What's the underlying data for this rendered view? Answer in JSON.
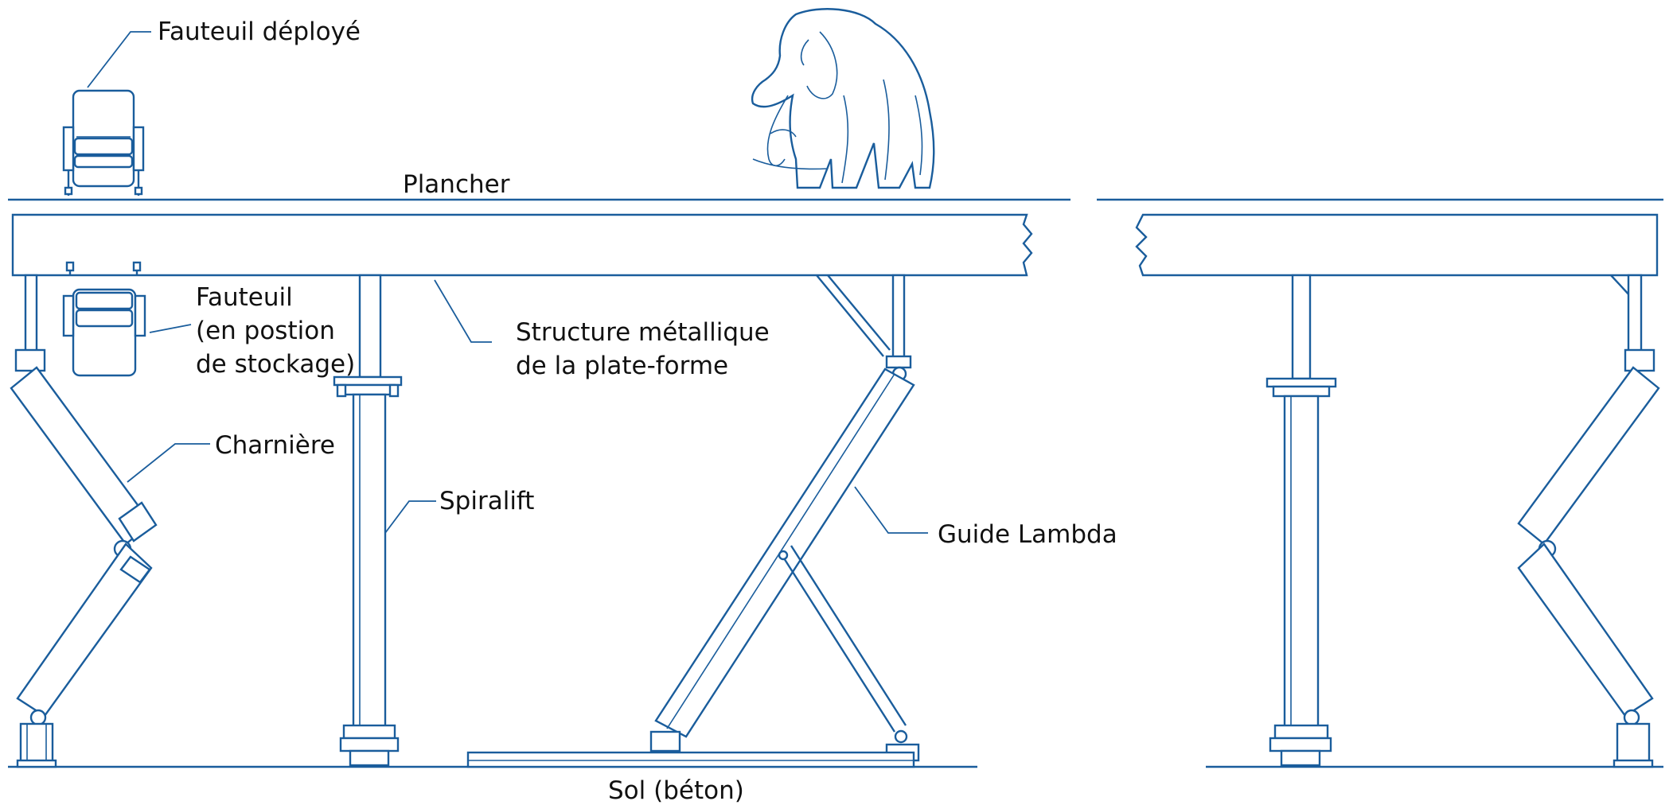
{
  "diagram": {
    "colors": {
      "line": "#1a5d9c",
      "text": "#111111",
      "background": "#ffffff"
    },
    "icons": [
      "elephant-icon"
    ],
    "labels": {
      "fauteuil_deploye": "Fauteuil déployé",
      "plancher": "Plancher",
      "fauteuil_line1": "Fauteuil",
      "fauteuil_line2": "(en postion",
      "fauteuil_line3": "de stockage)",
      "structure_line1": "Structure métallique",
      "structure_line2": "de la plate-forme",
      "charniere": "Charnière",
      "spiralift": "Spiralift",
      "guide_lambda": "Guide Lambda",
      "sol": "Sol (béton)"
    }
  }
}
